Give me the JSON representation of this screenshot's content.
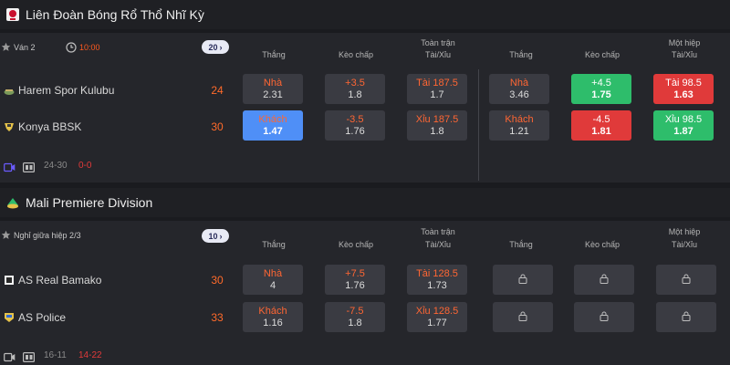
{
  "leagues": [
    {
      "title": "Liên Đoàn Bóng Rổ Thổ Nhĩ Kỳ",
      "status": "Ván 2",
      "time": "10:00",
      "count": "20",
      "columns": {
        "full_match_title": "Toàn trận",
        "half_title": "Một hiệp",
        "win": "Thắng",
        "handicap": "Kèo chấp",
        "over_under": "Tài/Xỉu"
      },
      "teams": [
        {
          "name": "Harem Spor Kulubu",
          "score": "24",
          "odds": [
            {
              "label": "Nhà",
              "value": "2.31",
              "style": "default"
            },
            {
              "label": "+3.5",
              "value": "1.8",
              "style": "default"
            },
            {
              "label": "Tài 187.5",
              "value": "1.7",
              "style": "default"
            },
            {
              "label": "Nhà",
              "value": "3.46",
              "style": "default"
            },
            {
              "label": "+4.5",
              "value": "1.75",
              "style": "green"
            },
            {
              "label": "Tài 98.5",
              "value": "1.63",
              "style": "red"
            }
          ]
        },
        {
          "name": "Konya BBSK",
          "score": "30",
          "odds": [
            {
              "label": "Khách",
              "value": "1.47",
              "style": "blue"
            },
            {
              "label": "-3.5",
              "value": "1.76",
              "style": "default"
            },
            {
              "label": "Xỉu 187.5",
              "value": "1.8",
              "style": "default"
            },
            {
              "label": "Khách",
              "value": "1.21",
              "style": "default"
            },
            {
              "label": "-4.5",
              "value": "1.81",
              "style": "red"
            },
            {
              "label": "Xỉu 98.5",
              "value": "1.87",
              "style": "green"
            }
          ]
        }
      ],
      "footer": {
        "score": "24-30",
        "red": "0-0"
      }
    },
    {
      "title": "Mali Premiere Division",
      "status": "Nghỉ giữa hiệp 2/3",
      "count": "10",
      "columns": {
        "full_match_title": "Toàn trận",
        "half_title": "Một hiệp",
        "win": "Thắng",
        "handicap": "Kèo chấp",
        "over_under": "Tài/Xỉu"
      },
      "teams": [
        {
          "name": "AS Real Bamako",
          "score": "30",
          "odds": [
            {
              "label": "Nhà",
              "value": "4",
              "style": "default"
            },
            {
              "label": "+7.5",
              "value": "1.76",
              "style": "default"
            },
            {
              "label": "Tài 128.5",
              "value": "1.73",
              "style": "default"
            }
          ]
        },
        {
          "name": "AS Police",
          "score": "33",
          "odds": [
            {
              "label": "Khách",
              "value": "1.16",
              "style": "default"
            },
            {
              "label": "-7.5",
              "value": "1.8",
              "style": "default"
            },
            {
              "label": "Xỉu 128.5",
              "value": "1.77",
              "style": "default"
            }
          ]
        }
      ],
      "footer": {
        "score": "16-11",
        "red": "14-22"
      }
    }
  ],
  "icons": {
    "star": "star-icon",
    "clock": "clock-icon",
    "lock": "lock-icon",
    "video": "video-icon",
    "scoreboard": "scoreboard-icon"
  },
  "colors": {
    "accent_orange": "#ff6633",
    "green": "#2ebd6b",
    "red": "#e03a3a",
    "blue": "#4f8ff7"
  }
}
